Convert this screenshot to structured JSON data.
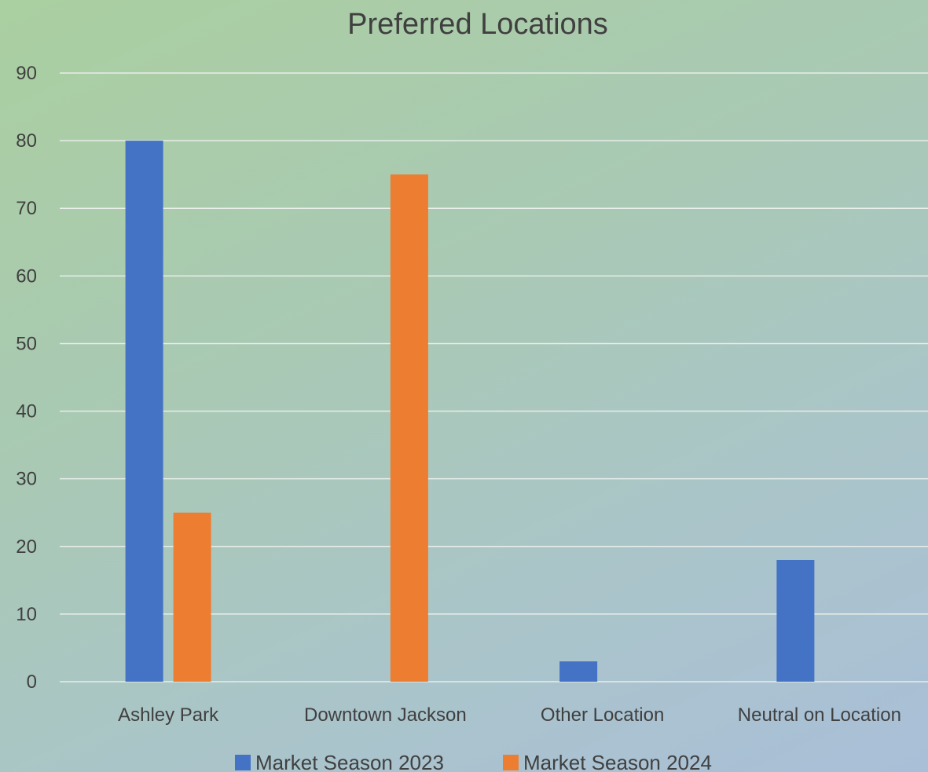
{
  "chart_data": {
    "type": "bar",
    "title": "Preferred Locations",
    "categories": [
      "Ashley Park",
      "Downtown Jackson",
      "Other Location",
      "Neutral on Location"
    ],
    "series": [
      {
        "name": "Market Season 2023",
        "color": "#4472c4",
        "values": [
          80,
          0,
          3,
          18
        ]
      },
      {
        "name": "Market Season 2024",
        "color": "#ed7d31",
        "values": [
          25,
          75,
          0,
          0
        ]
      }
    ],
    "ylim": [
      0,
      90
    ],
    "yticks": [
      0,
      10,
      20,
      30,
      40,
      50,
      60,
      70,
      80,
      90
    ],
    "grid": true,
    "legend": "bottom"
  }
}
